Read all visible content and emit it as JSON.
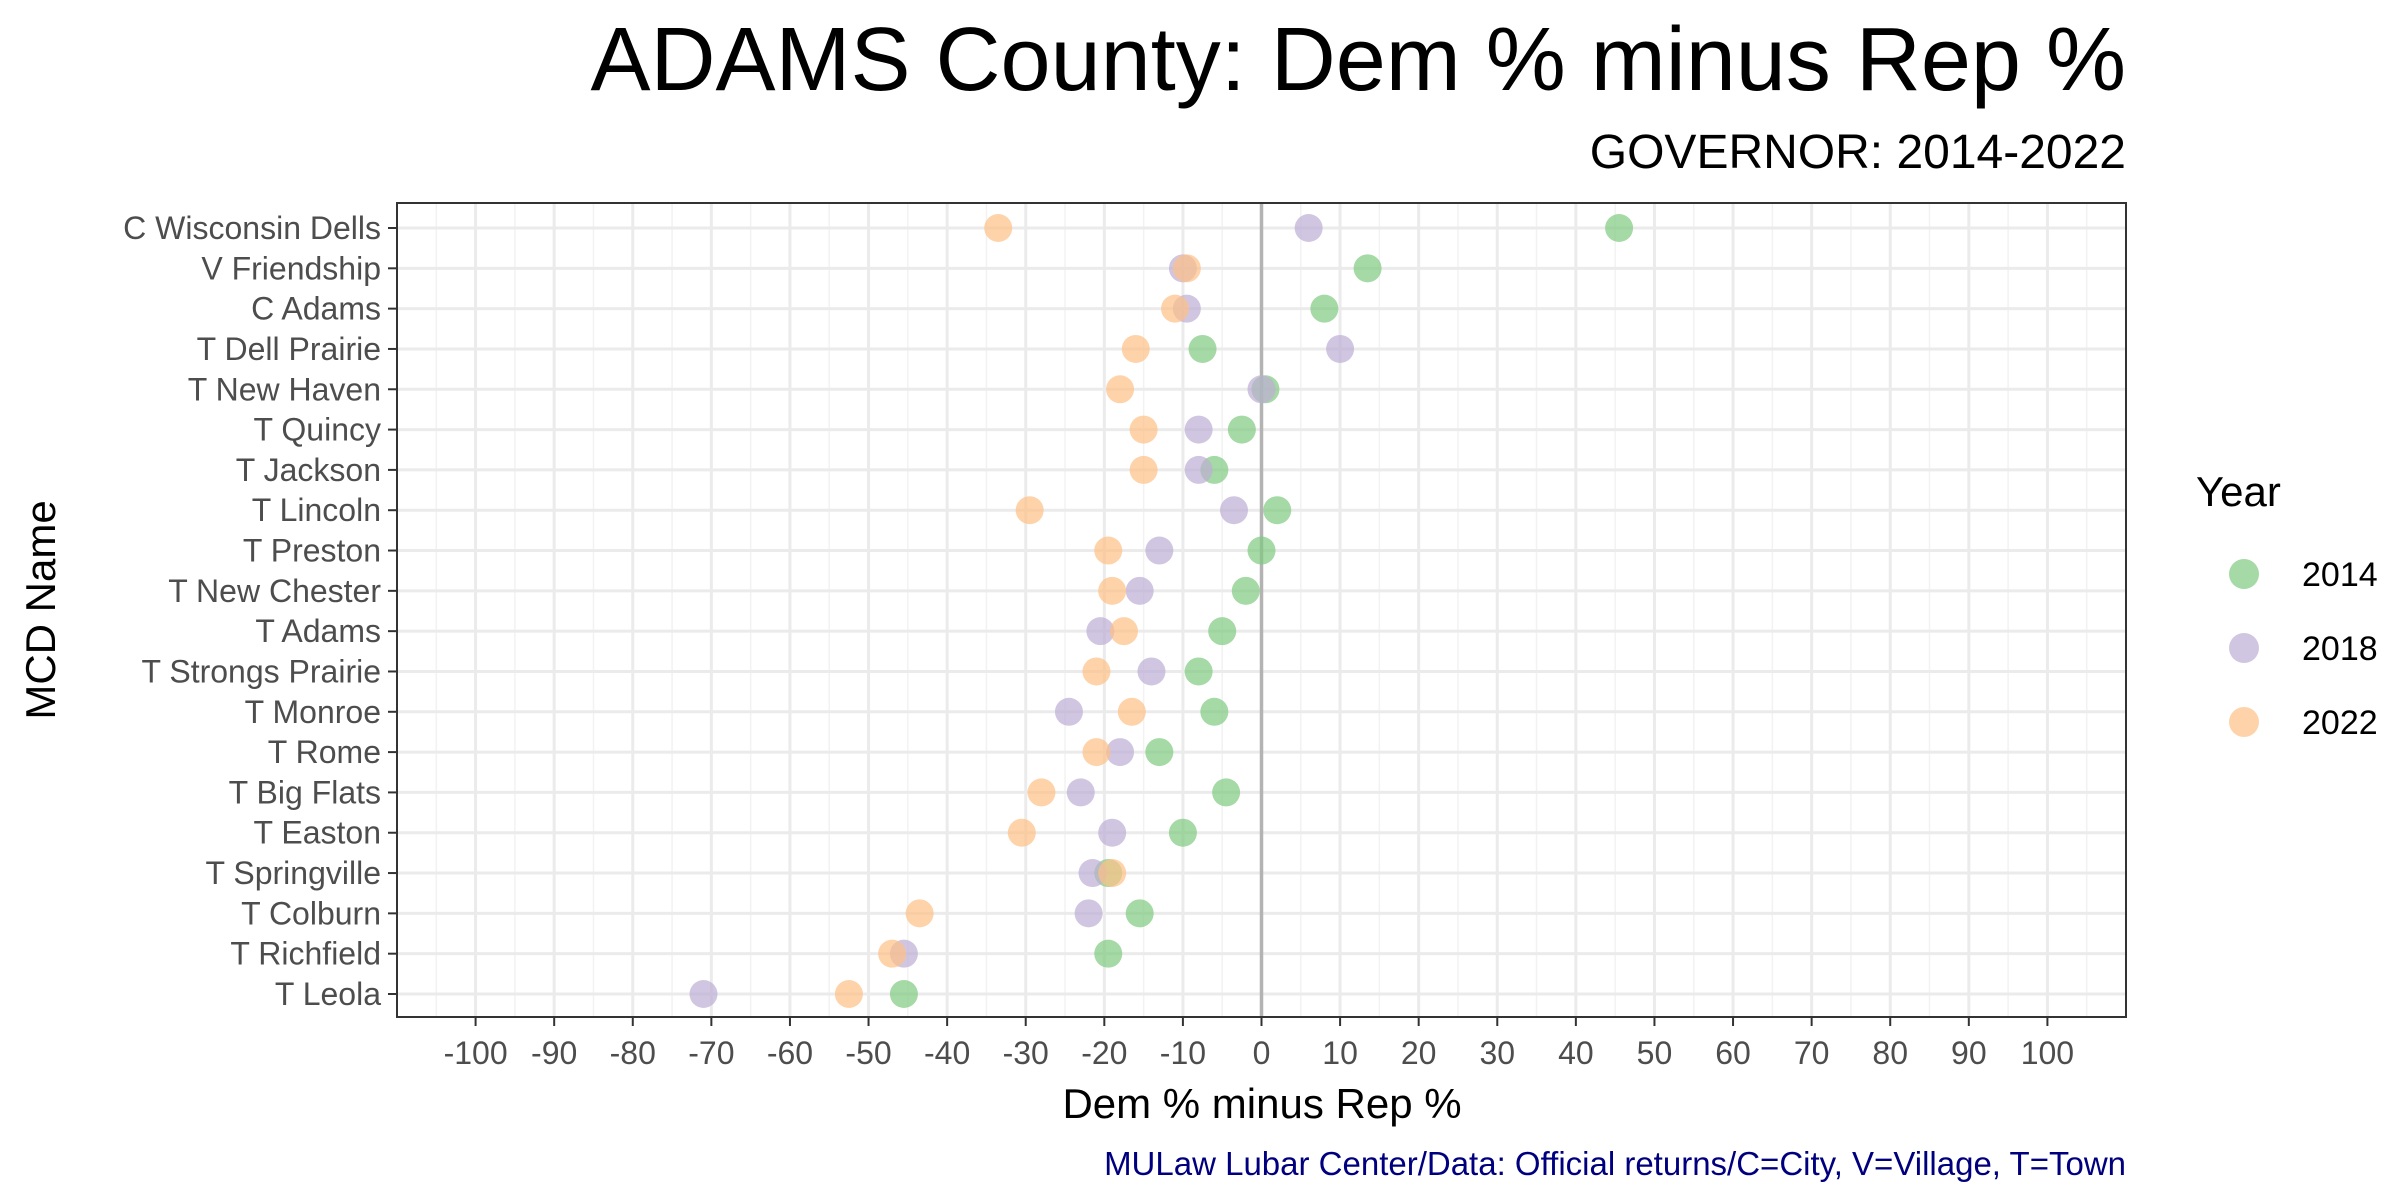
{
  "chart_data": {
    "type": "scatter",
    "title": "ADAMS County: Dem % minus Rep %",
    "subtitle": "GOVERNOR: 2014-2022",
    "xlabel": "Dem % minus Rep %",
    "ylabel": "MCD Name",
    "caption": "MULaw Lubar Center/Data: Official returns/C=City, V=Village, T=Town",
    "xlim": [
      -110,
      110
    ],
    "xticks": [
      -100,
      -90,
      -80,
      -70,
      -60,
      -50,
      -40,
      -30,
      -20,
      -10,
      0,
      10,
      20,
      30,
      40,
      50,
      60,
      70,
      80,
      90,
      100
    ],
    "xtick_labels": [
      "-100",
      "-90",
      "-80",
      "-70",
      "-60",
      "-50",
      "-40",
      "-30",
      "-20",
      "-10",
      "0",
      "10",
      "20",
      "30",
      "40",
      "50",
      "60",
      "70",
      "80",
      "90",
      "100"
    ],
    "grid": true,
    "reference_line_x": 0,
    "legend": {
      "title": "Year",
      "position": "right"
    },
    "categories": [
      "C Wisconsin Dells",
      "V Friendship",
      "C Adams",
      "T Dell Prairie",
      "T New Haven",
      "T Quincy",
      "T Jackson",
      "T Lincoln",
      "T Preston",
      "T New Chester",
      "T Adams",
      "T Strongs Prairie",
      "T Monroe",
      "T Rome",
      "T Big Flats",
      "T Easton",
      "T Springville",
      "T Colburn",
      "T Richfield",
      "T Leola"
    ],
    "series": [
      {
        "name": "2014",
        "color": "#7fc97f",
        "values": [
          45.5,
          13.5,
          8,
          -7.5,
          0.5,
          -2.5,
          -6,
          2,
          0,
          -2,
          -5,
          -8,
          -6,
          -13,
          -4.5,
          -10,
          -19.5,
          -15.5,
          -19.5,
          -45.5
        ]
      },
      {
        "name": "2018",
        "color": "#beaed4",
        "values": [
          6,
          -10,
          -9.5,
          10,
          0,
          -8,
          -8,
          -3.5,
          -13,
          -15.5,
          -20.5,
          -14,
          -24.5,
          -18,
          -23,
          -19,
          -21.5,
          -22,
          -45.5,
          -71
        ]
      },
      {
        "name": "2022",
        "color": "#fdc086",
        "values": [
          -33.5,
          -9.5,
          -11,
          -16,
          -18,
          -15,
          -15,
          -29.5,
          -19.5,
          -19,
          -17.5,
          -21,
          -16.5,
          -21,
          -28,
          -30.5,
          -19,
          -43.5,
          -47,
          -52.5
        ]
      }
    ]
  }
}
